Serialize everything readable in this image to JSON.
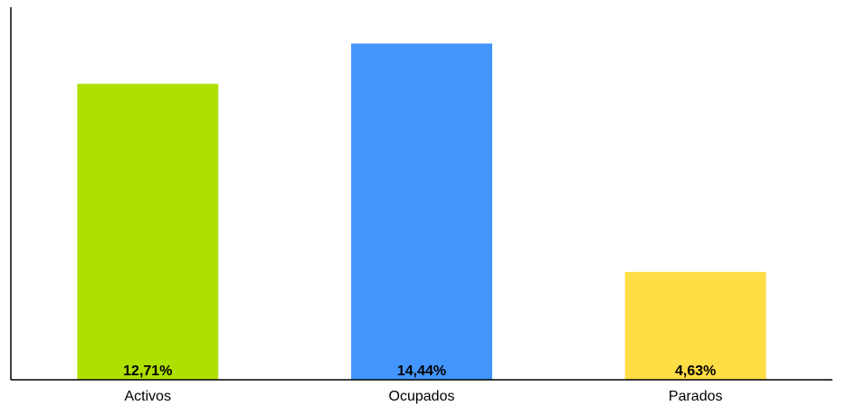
{
  "chart_data": {
    "type": "bar",
    "title": "",
    "xlabel": "",
    "ylabel": "",
    "categories": [
      "Activos",
      "Ocupados",
      "Parados"
    ],
    "values": [
      12.71,
      14.44,
      4.63
    ],
    "data_labels": [
      "12,71%",
      "14,44%",
      "4,63%"
    ],
    "colors": [
      "#aee000",
      "#4496ff",
      "#ffdd44"
    ],
    "ylim": [
      0,
      16
    ],
    "grid": false,
    "legend": "none"
  }
}
